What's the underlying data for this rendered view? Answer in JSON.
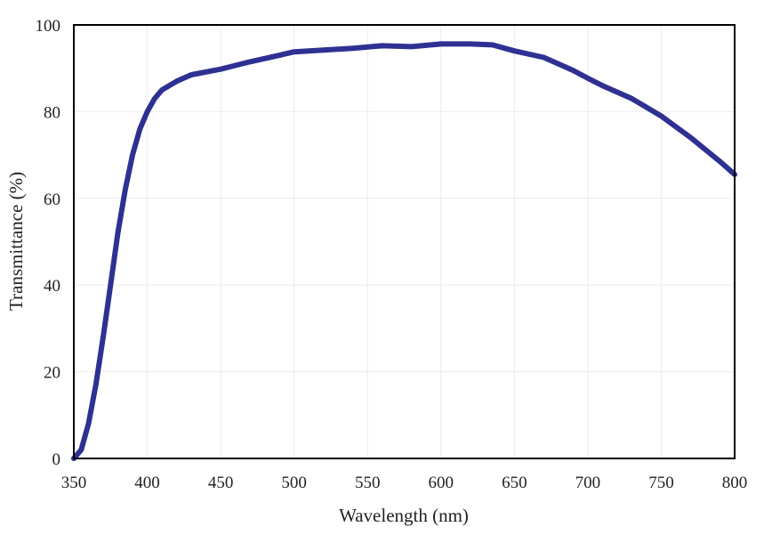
{
  "chart_data": {
    "type": "line",
    "title": "",
    "xlabel": "Wavelength (nm)",
    "ylabel": "Transmittance (%)",
    "xlim": [
      350,
      800
    ],
    "ylim": [
      0,
      100
    ],
    "xticks": [
      350,
      400,
      450,
      500,
      550,
      600,
      650,
      700,
      750,
      800
    ],
    "yticks": [
      0,
      20,
      40,
      60,
      80,
      100
    ],
    "grid": true,
    "line_color": "#2e3192",
    "series": [
      {
        "name": "Transmittance",
        "x": [
          350,
          355,
          360,
          365,
          370,
          375,
          380,
          385,
          390,
          395,
          400,
          405,
          410,
          415,
          420,
          430,
          450,
          470,
          490,
          500,
          520,
          540,
          560,
          580,
          600,
          620,
          635,
          650,
          670,
          690,
          700,
          710,
          730,
          750,
          770,
          790,
          800
        ],
        "y": [
          0,
          2,
          8,
          17,
          28,
          40,
          52,
          62,
          70,
          76,
          80,
          83,
          85,
          86,
          87,
          88.5,
          89.8,
          91.5,
          93,
          93.8,
          94.2,
          94.6,
          95.2,
          95,
          95.6,
          95.6,
          95.4,
          94,
          92.5,
          89.5,
          87.7,
          86,
          83,
          79,
          74,
          68.5,
          65.5
        ]
      }
    ]
  }
}
